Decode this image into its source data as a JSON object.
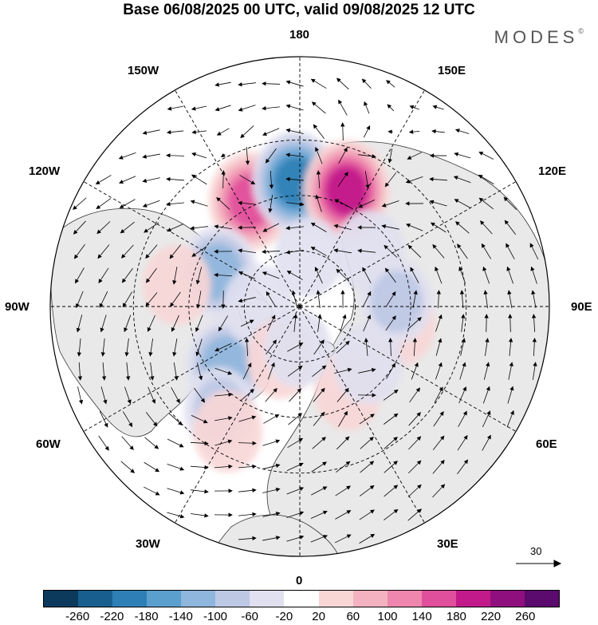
{
  "title": "Base 06/08/2025 00 UTC, valid 09/08/2025 12 UTC",
  "brand": "MODES",
  "brand_mark": "©",
  "longitude_labels": {
    "top": "180",
    "bottom": "0",
    "left": "90W",
    "right": "90E",
    "upper_left_1": "150W",
    "upper_left_2": "120W",
    "upper_right_1": "150E",
    "upper_right_2": "120E",
    "lower_left_1": "60W",
    "lower_left_2": "30W",
    "lower_right_1": "60E",
    "lower_right_2": "30E"
  },
  "reference_vector": "30",
  "colorbar": {
    "colors": [
      "#0b3a5c",
      "#185f8f",
      "#2e7fb5",
      "#5b9fcf",
      "#8fb6dc",
      "#bcc8e4",
      "#e0e0f0",
      "#ffffff",
      "#f8d6d6",
      "#f4b2c0",
      "#ee86ad",
      "#e04f9c",
      "#c21a8a",
      "#8f0f7e",
      "#5b0a6e"
    ],
    "labels": [
      "-260",
      "-220",
      "-180",
      "-140",
      "-100",
      "-60",
      "-20",
      "20",
      "60",
      "100",
      "140",
      "180",
      "220",
      "260"
    ]
  },
  "anomalies": [
    {
      "lon": -155,
      "lat": 48,
      "value": 180
    },
    {
      "lon": -178,
      "lat": 45,
      "value": -200
    },
    {
      "lon": 158,
      "lat": 45,
      "value": 200
    },
    {
      "lon": 128,
      "lat": 58,
      "value": -70
    },
    {
      "lon": -113,
      "lat": 58,
      "value": -130
    },
    {
      "lon": 80,
      "lat": 53,
      "value": 60
    },
    {
      "lon": 93,
      "lat": 55,
      "value": -80
    },
    {
      "lon": -52,
      "lat": 56,
      "value": -140
    },
    {
      "lon": -38,
      "lat": 43,
      "value": -80
    },
    {
      "lon": 30,
      "lat": 55,
      "value": 50
    },
    {
      "lon": -90,
      "lat": 75,
      "value": -70
    },
    {
      "lon": 50,
      "lat": 58,
      "value": -60
    },
    {
      "lon": -30,
      "lat": 38,
      "value": 60
    },
    {
      "lon": 170,
      "lat": 72,
      "value": -50
    },
    {
      "lon": -100,
      "lat": 45,
      "value": 50
    },
    {
      "lon": -20,
      "lat": 70,
      "value": 50
    },
    {
      "lon": -3,
      "lat": 75,
      "value": -40
    }
  ]
}
